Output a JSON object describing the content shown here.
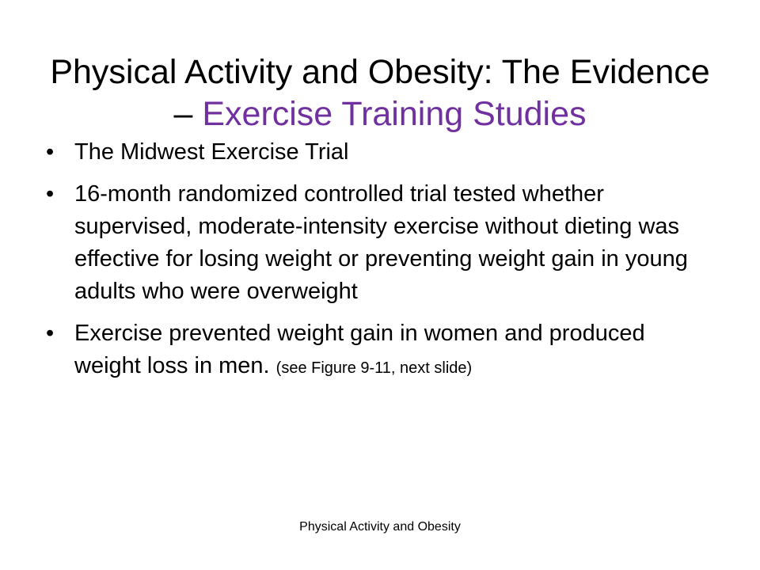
{
  "slide": {
    "title_main": "Physical Activity and Obesity: The Evidence – ",
    "title_accent": "Exercise Training Studies",
    "accent_color": "#7030a0",
    "bullet_glyph": "•",
    "bullets": [
      {
        "text": "The Midwest Exercise Trial"
      },
      {
        "text": "16-month randomized controlled trial tested whether supervised, moderate-intensity exercise without dieting was effective for losing weight or preventing weight gain in young adults who were overweight"
      },
      {
        "text": "Exercise prevented weight gain in women and produced weight loss in men. ",
        "note": "(see Figure 9-11, next slide)"
      }
    ],
    "footer": "Physical Activity and Obesity"
  }
}
